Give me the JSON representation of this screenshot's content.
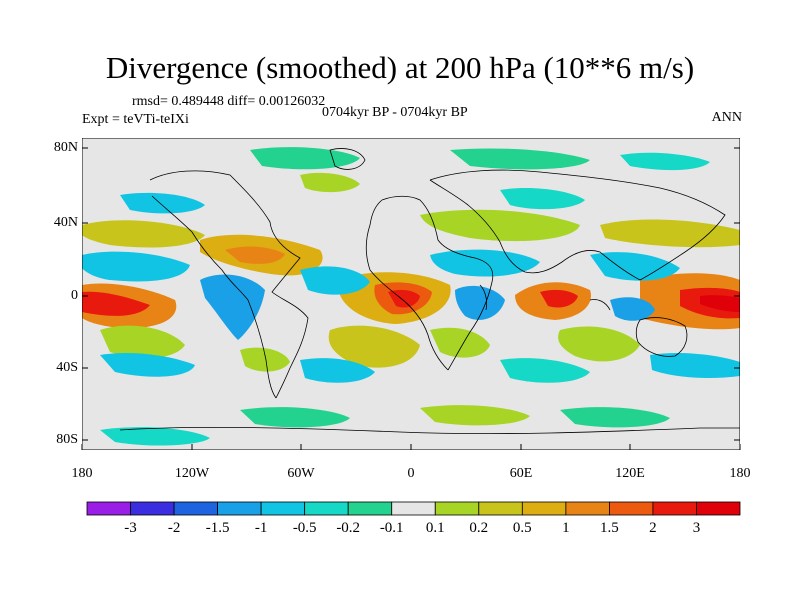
{
  "title": "Divergence (smoothed) at 200 hPa (10**6 m/s)",
  "rmsd_text": "rmsd= 0.489448 diff= 0.00126032",
  "expt_text": "Expt = teVTi-teIXi",
  "period_text": "0704kyr BP - 0704kyr BP",
  "season_text": "ANN",
  "lat_labels": [
    "80N",
    "40N",
    "0",
    "40S",
    "80S"
  ],
  "lon_labels": [
    "180",
    "120W",
    "60W",
    "0",
    "60E",
    "120E",
    "180"
  ],
  "colorbar": {
    "labels": [
      "-3",
      "-2",
      "-1.5",
      "-1",
      "-0.5",
      "-0.2",
      "-0.1",
      "0.1",
      "0.2",
      "0.5",
      "1",
      "1.5",
      "2",
      "3"
    ],
    "colors": [
      "#9a1ee6",
      "#3b2de0",
      "#1e64e0",
      "#1aa0e6",
      "#12c4e4",
      "#15d8c6",
      "#22d28e",
      "#e6e6e6",
      "#a8d426",
      "#c8c41c",
      "#dcae12",
      "#e88416",
      "#ec5a10",
      "#e81a0e",
      "#e0000a"
    ]
  },
  "colors": {
    "missing": "#e6e6e6",
    "coast": "#000000"
  }
}
